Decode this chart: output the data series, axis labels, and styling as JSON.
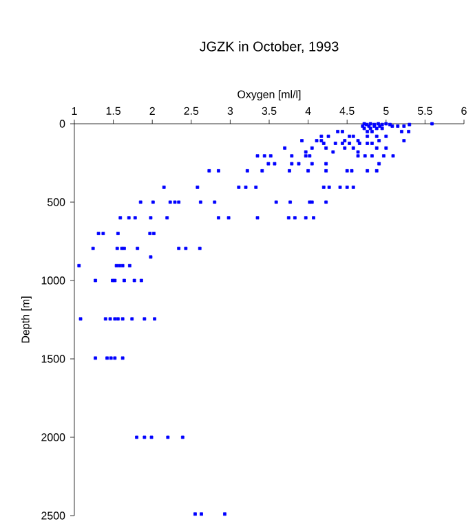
{
  "chart_data": {
    "type": "scatter",
    "title": "JGZK in October, 1993",
    "xlabel": "Oxygen [ml/l]",
    "ylabel": "Depth [m]",
    "color": "#0000ff",
    "marker": "square",
    "grid": false,
    "xlim": [
      1,
      6
    ],
    "xticks": [
      1,
      1.5,
      2,
      2.5,
      3,
      3.5,
      4,
      4.5,
      5,
      5.5,
      6
    ],
    "ylim": [
      2500,
      0
    ],
    "yticks": [
      0,
      500,
      1000,
      1500,
      2000,
      2500
    ],
    "x": [
      5.59,
      5.3,
      4.72,
      4.75,
      4.8,
      4.85,
      4.9,
      4.95,
      5.0,
      5.05,
      4.7,
      4.78,
      4.85,
      4.92,
      5.08,
      5.15,
      5.23,
      4.72,
      4.8,
      4.88,
      4.95,
      4.38,
      4.44,
      4.76,
      4.82,
      5.2,
      5.29,
      4.17,
      4.26,
      4.53,
      4.58,
      4.76,
      4.88,
      5.0,
      3.92,
      4.11,
      4.17,
      4.47,
      4.64,
      4.91,
      5.23,
      4.2,
      4.35,
      4.44,
      4.53,
      4.66,
      4.76,
      4.82,
      3.7,
      4.05,
      4.23,
      4.47,
      4.58,
      4.88,
      5.0,
      3.97,
      4.32,
      4.64,
      3.35,
      3.44,
      3.52,
      3.79,
      3.97,
      4.02,
      4.64,
      4.73,
      4.82,
      4.97,
      5.09,
      3.49,
      3.57,
      3.79,
      3.88,
      4.05,
      4.23,
      4.91,
      2.73,
      2.85,
      3.22,
      3.41,
      3.76,
      4.0,
      4.23,
      4.5,
      4.56,
      4.76,
      4.88,
      2.15,
      2.58,
      3.11,
      3.2,
      3.33,
      4.2,
      4.27,
      4.41,
      4.5,
      4.58,
      1.85,
      2.01,
      2.23,
      2.29,
      2.34,
      2.62,
      2.8,
      3.59,
      3.77,
      4.02,
      4.05,
      4.23,
      1.59,
      1.7,
      1.78,
      1.98,
      2.19,
      2.85,
      2.98,
      3.35,
      3.75,
      3.83,
      3.97,
      4.07,
      1.31,
      1.37,
      1.56,
      1.97,
      2.02,
      1.24,
      1.55,
      1.61,
      1.64,
      1.81,
      2.34,
      2.43,
      2.61,
      1.98,
      1.06,
      1.54,
      1.58,
      1.62,
      1.71,
      1.27,
      1.49,
      1.52,
      1.64,
      1.77,
      1.86,
      1.08,
      1.4,
      1.46,
      1.52,
      1.56,
      1.62,
      1.74,
      1.9,
      2.03,
      1.27,
      1.42,
      1.47,
      1.52,
      1.62,
      1.8,
      1.9,
      1.99,
      2.2,
      2.39,
      2.55,
      2.63,
      2.93
    ],
    "values": [
      0,
      5,
      0,
      5,
      0,
      5,
      0,
      5,
      0,
      5,
      15,
      15,
      15,
      15,
      15,
      15,
      15,
      30,
      30,
      30,
      30,
      50,
      50,
      50,
      50,
      50,
      50,
      80,
      80,
      80,
      80,
      80,
      80,
      80,
      108,
      108,
      108,
      108,
      108,
      108,
      108,
      125,
      125,
      125,
      125,
      125,
      125,
      125,
      155,
      155,
      155,
      155,
      155,
      155,
      155,
      180,
      180,
      180,
      205,
      205,
      205,
      205,
      205,
      205,
      205,
      205,
      205,
      205,
      205,
      255,
      255,
      255,
      255,
      255,
      255,
      255,
      300,
      300,
      300,
      300,
      300,
      300,
      300,
      300,
      300,
      300,
      300,
      405,
      405,
      405,
      405,
      405,
      405,
      405,
      405,
      405,
      405,
      500,
      500,
      500,
      500,
      500,
      500,
      500,
      500,
      500,
      500,
      500,
      500,
      600,
      600,
      600,
      600,
      600,
      600,
      600,
      600,
      600,
      600,
      600,
      600,
      700,
      700,
      700,
      700,
      700,
      795,
      795,
      795,
      795,
      795,
      795,
      795,
      795,
      850,
      905,
      905,
      905,
      905,
      905,
      1000,
      1000,
      1000,
      1000,
      1000,
      1000,
      1245,
      1245,
      1245,
      1245,
      1245,
      1245,
      1245,
      1245,
      1245,
      1495,
      1495,
      1495,
      1495,
      1495,
      2000,
      2000,
      2000,
      2000,
      2000,
      2490,
      2490,
      2490
    ]
  }
}
